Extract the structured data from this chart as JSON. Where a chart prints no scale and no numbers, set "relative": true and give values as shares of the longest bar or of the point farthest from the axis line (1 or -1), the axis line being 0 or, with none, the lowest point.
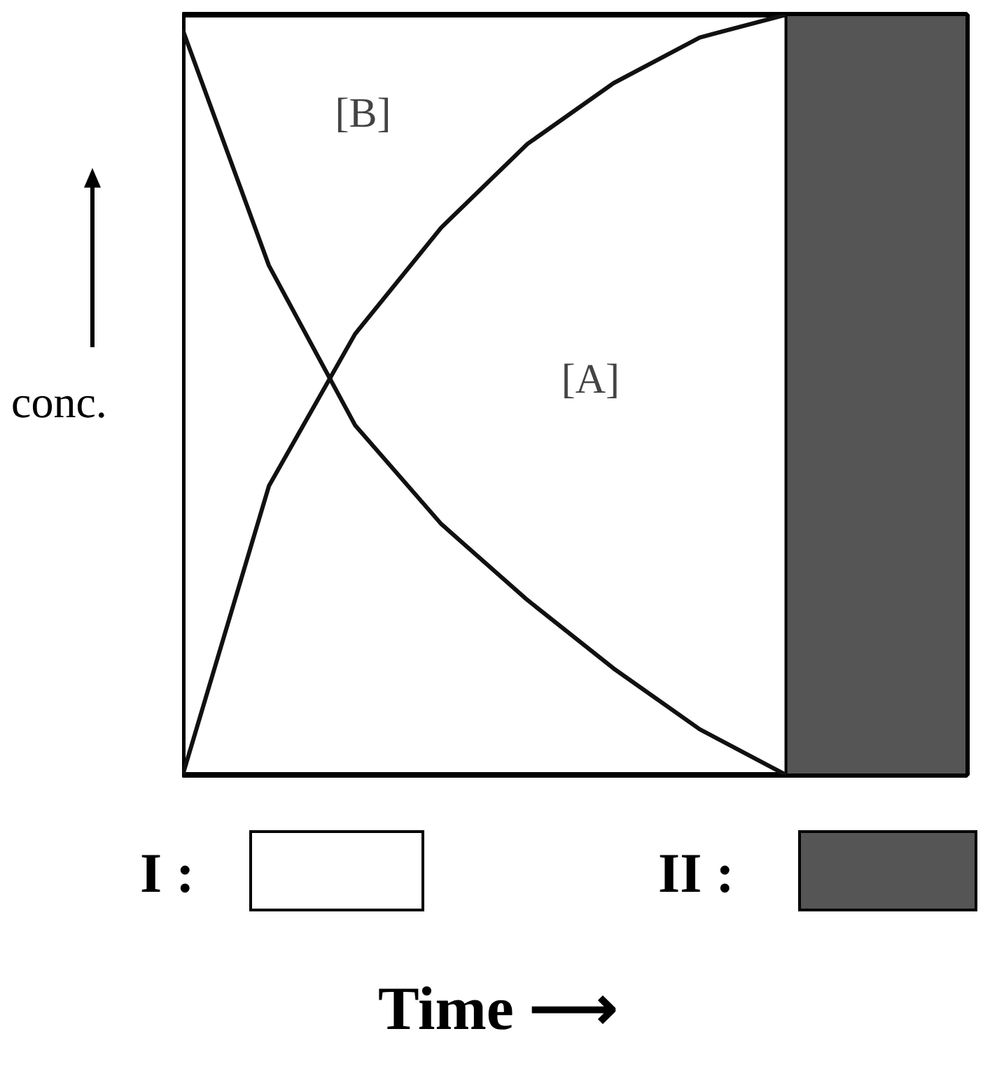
{
  "chart_data": {
    "type": "line",
    "relative": true,
    "tick_labels": false,
    "categories": [
      null,
      null,
      null,
      null,
      null,
      null,
      null,
      null
    ],
    "xlabel": "Time ⟶",
    "ylabel": "conc.",
    "grid": false,
    "marker": "none",
    "line_style": "solid",
    "series": [
      {
        "color": "#111111",
        "values": [
          0.98,
          0.67,
          0.46,
          0.33,
          0.23,
          0.14,
          0.06,
          0.0
        ]
      },
      {
        "color": "#111111",
        "values": [
          0.0,
          0.38,
          0.58,
          0.72,
          0.83,
          0.91,
          0.97,
          1.0
        ]
      }
    ],
    "annotations": [
      "[B]",
      "[A]",
      "I :",
      "II :"
    ]
  }
}
